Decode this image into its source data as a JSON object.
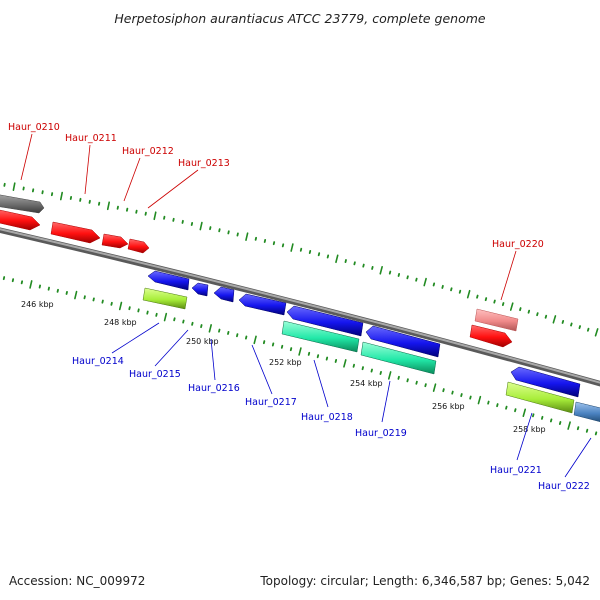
{
  "title": "Herpetosiphon aurantiacus ATCC 23779, complete genome",
  "accession_text": "Accession: NC_009972",
  "topology_text": "Topology: circular; Length: 6,346,587 bp; Genes: 5,042",
  "colors": {
    "backbone": "#8c8c8c",
    "tick": "#228b22",
    "forward_label": "#cc0000",
    "reverse_label": "#0000cc",
    "red": "#ff1a1a",
    "pink": "#f09090",
    "gray": "#707070",
    "blue": "#1a1aee",
    "cyan": "#22e8a8",
    "lime": "#a8ee3a",
    "steelblue": "#4a82c0"
  },
  "kbp_labels": [
    "246 kbp",
    "248 kbp",
    "250 kbp",
    "252 kbp",
    "254 kbp",
    "256 kbp",
    "258 kbp"
  ],
  "forward_labels": [
    "Haur_0210",
    "Haur_0211",
    "Haur_0212",
    "Haur_0213",
    "Haur_0220"
  ],
  "reverse_labels": [
    "Haur_0214",
    "Haur_0215",
    "Haur_0216",
    "Haur_0217",
    "Haur_0218",
    "Haur_0219",
    "Haur_0221",
    "Haur_0222"
  ]
}
